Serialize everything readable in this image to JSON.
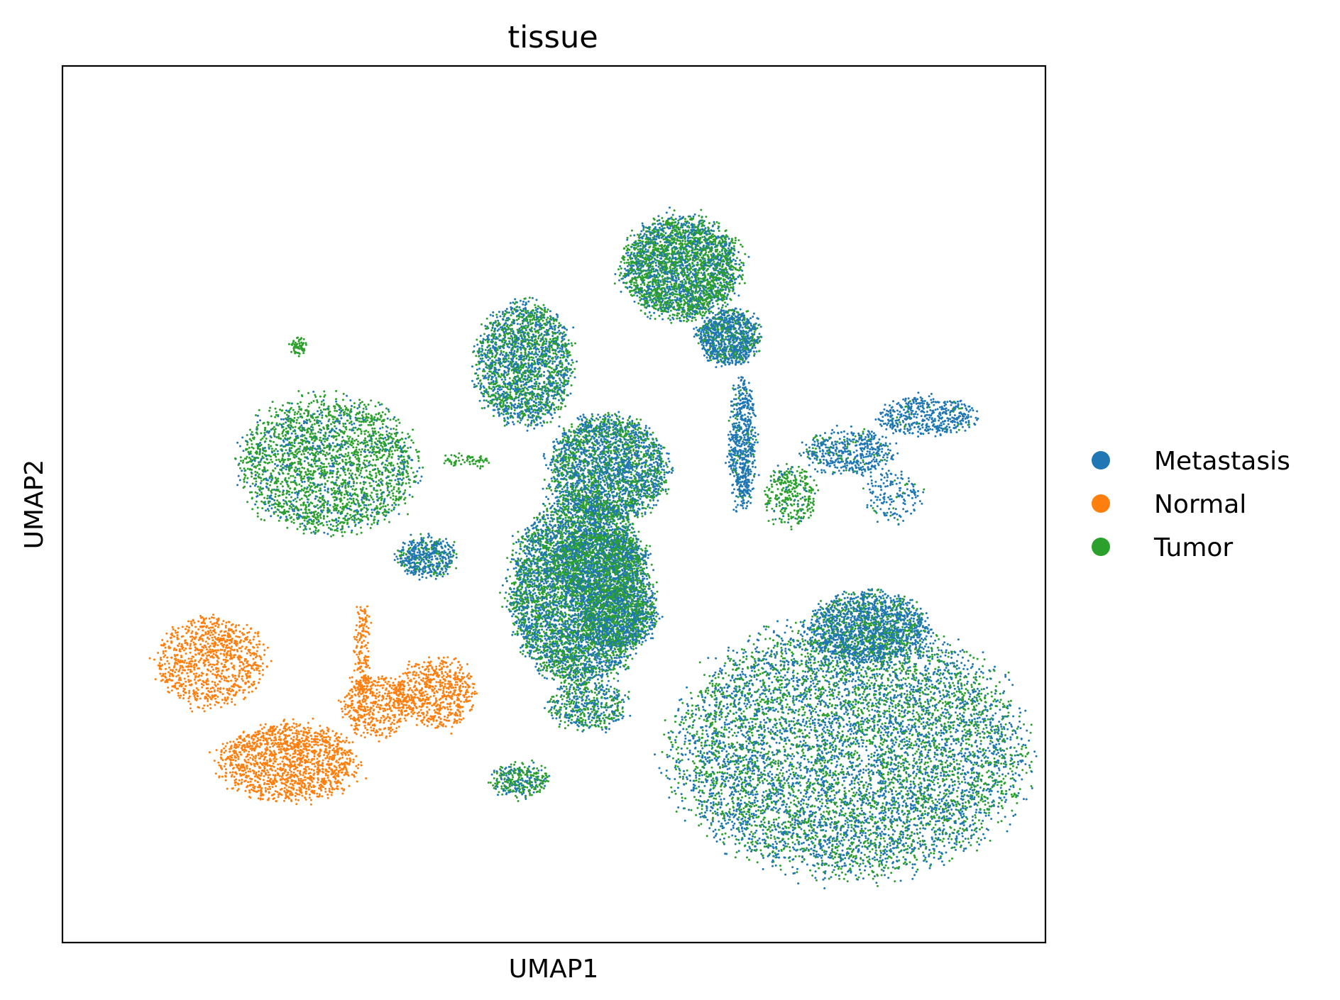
{
  "chart_data": {
    "type": "scatter",
    "title": "tissue",
    "xlabel": "UMAP1",
    "ylabel": "UMAP2",
    "xlim": [
      0,
      100
    ],
    "ylim": [
      0,
      100
    ],
    "grid": false,
    "ticks": false,
    "legend_placement": "right",
    "colors": {
      "Metastasis": "#1f77b4",
      "Normal": "#ff7f0e",
      "Tumor": "#2ca02c"
    },
    "series": [
      {
        "name": "Metastasis"
      },
      {
        "name": "Normal"
      },
      {
        "name": "Tumor"
      }
    ],
    "clusters": [
      {
        "cx": 52.7,
        "cy": 40.0,
        "rx": 7.2,
        "ry": 10.5,
        "density": 0.34,
        "mix": {
          "Metastasis": 0.55,
          "Tumor": 0.45
        }
      },
      {
        "cx": 63.0,
        "cy": 77.0,
        "rx": 6.0,
        "ry": 5.8,
        "density": 0.18,
        "mix": {
          "Metastasis": 0.4,
          "Tumor": 0.6
        }
      },
      {
        "cx": 67.8,
        "cy": 69.0,
        "rx": 3.2,
        "ry": 3.2,
        "density": 0.06,
        "mix": {
          "Metastasis": 0.75,
          "Tumor": 0.25
        }
      },
      {
        "cx": 47.0,
        "cy": 66.0,
        "rx": 5.0,
        "ry": 7.0,
        "density": 0.13,
        "mix": {
          "Metastasis": 0.55,
          "Tumor": 0.45
        }
      },
      {
        "cx": 69.2,
        "cy": 57.0,
        "rx": 1.2,
        "ry": 7.5,
        "density": 0.04,
        "mix": {
          "Metastasis": 0.92,
          "Tumor": 0.08
        }
      },
      {
        "cx": 55.5,
        "cy": 54.0,
        "rx": 6.0,
        "ry": 6.2,
        "density": 0.16,
        "mix": {
          "Metastasis": 0.6,
          "Tumor": 0.4
        }
      },
      {
        "cx": 54.5,
        "cy": 43.0,
        "rx": 4.8,
        "ry": 4.0,
        "density": 0.07,
        "mix": {
          "Metastasis": 0.45,
          "Tumor": 0.55
        }
      },
      {
        "cx": 56.5,
        "cy": 37.0,
        "rx": 4.0,
        "ry": 3.5,
        "density": 0.05,
        "mix": {
          "Metastasis": 0.55,
          "Tumor": 0.45
        }
      },
      {
        "cx": 27.0,
        "cy": 54.5,
        "rx": 9.0,
        "ry": 7.8,
        "density": 0.16,
        "mix": {
          "Metastasis": 0.25,
          "Tumor": 0.75
        }
      },
      {
        "cx": 37.0,
        "cy": 44.0,
        "rx": 3.0,
        "ry": 2.2,
        "density": 0.03,
        "mix": {
          "Metastasis": 0.8,
          "Tumor": 0.2
        }
      },
      {
        "cx": 24.0,
        "cy": 68.0,
        "rx": 0.6,
        "ry": 0.8,
        "density": 0.004,
        "mix": {
          "Tumor": 1.0
        }
      },
      {
        "cx": 15.0,
        "cy": 32.0,
        "rx": 5.5,
        "ry": 5.0,
        "density": 0.06,
        "mix": {
          "Normal": 1.0
        }
      },
      {
        "cx": 23.0,
        "cy": 20.5,
        "rx": 7.0,
        "ry": 4.5,
        "density": 0.09,
        "mix": {
          "Normal": 1.0
        }
      },
      {
        "cx": 32.0,
        "cy": 27.0,
        "rx": 3.5,
        "ry": 3.5,
        "density": 0.03,
        "mix": {
          "Normal": 1.0
        }
      },
      {
        "cx": 38.0,
        "cy": 28.5,
        "rx": 4.0,
        "ry": 4.0,
        "density": 0.04,
        "mix": {
          "Normal": 1.0
        }
      },
      {
        "cx": 30.5,
        "cy": 33.0,
        "rx": 0.6,
        "ry": 6.0,
        "density": 0.01,
        "mix": {
          "Normal": 1.0
        }
      },
      {
        "cx": 88.0,
        "cy": 60.0,
        "rx": 5.0,
        "ry": 2.2,
        "density": 0.03,
        "mix": {
          "Metastasis": 0.95,
          "Tumor": 0.05
        }
      },
      {
        "cx": 80.0,
        "cy": 56.0,
        "rx": 4.5,
        "ry": 2.5,
        "density": 0.03,
        "mix": {
          "Metastasis": 0.85,
          "Tumor": 0.15
        }
      },
      {
        "cx": 74.0,
        "cy": 51.0,
        "rx": 2.6,
        "ry": 3.5,
        "density": 0.02,
        "mix": {
          "Metastasis": 0.15,
          "Tumor": 0.85
        }
      },
      {
        "cx": 84.5,
        "cy": 51.0,
        "rx": 3.0,
        "ry": 3.0,
        "density": 0.01,
        "mix": {
          "Metastasis": 0.9,
          "Tumor": 0.1
        }
      },
      {
        "cx": 80.0,
        "cy": 22.0,
        "rx": 18.0,
        "ry": 14.5,
        "density": 0.48,
        "mix": {
          "Metastasis": 0.55,
          "Tumor": 0.45
        }
      },
      {
        "cx": 82.0,
        "cy": 36.0,
        "rx": 6.0,
        "ry": 4.0,
        "density": 0.1,
        "mix": {
          "Metastasis": 0.75,
          "Tumor": 0.25
        }
      },
      {
        "cx": 53.5,
        "cy": 27.0,
        "rx": 4.0,
        "ry": 2.8,
        "density": 0.03,
        "mix": {
          "Metastasis": 0.5,
          "Tumor": 0.5
        }
      },
      {
        "cx": 46.5,
        "cy": 18.5,
        "rx": 3.0,
        "ry": 1.8,
        "density": 0.02,
        "mix": {
          "Metastasis": 0.4,
          "Tumor": 0.6
        }
      },
      {
        "cx": 41.0,
        "cy": 55.0,
        "rx": 2.5,
        "ry": 0.6,
        "density": 0.004,
        "mix": {
          "Tumor": 1.0
        }
      }
    ]
  }
}
